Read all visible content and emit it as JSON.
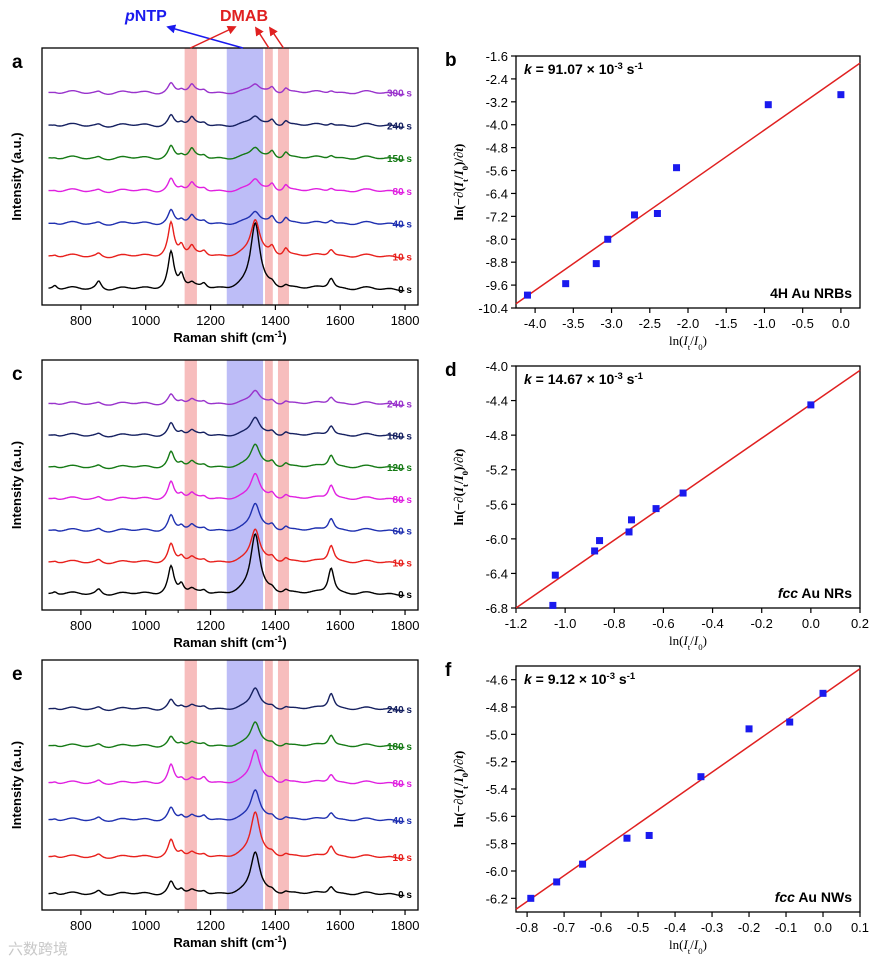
{
  "chart_data": [
    {
      "panel": "a",
      "type": "line",
      "title": "",
      "xlabel": "Raman shift (cm-1)",
      "ylabel": "Intensity (a.u.)",
      "xlim": [
        680,
        1840
      ],
      "xticks": [
        800,
        1000,
        1200,
        1400,
        1600,
        1800
      ],
      "series": [
        {
          "name": "0 s",
          "color": "#000000"
        },
        {
          "name": "10 s",
          "color": "#e8201c"
        },
        {
          "name": "40 s",
          "color": "#1f30b0"
        },
        {
          "name": "80 s",
          "color": "#e020e0"
        },
        {
          "name": "150 s",
          "color": "#157a15"
        },
        {
          "name": "240 s",
          "color": "#152060"
        },
        {
          "name": "300 s",
          "color": "#9933cc"
        }
      ]
    },
    {
      "panel": "b",
      "type": "scatter",
      "title": "",
      "annotation_k": "k = 91.07 × 10-3 s-1",
      "sample": "4H Au NRBs",
      "xlabel": "ln(It/I0)",
      "ylabel": "ln(−∂(It/I0)/∂t)",
      "xlim": [
        -4.25,
        0.25
      ],
      "ylim": [
        -10.4,
        -1.6
      ],
      "xticks": [
        -4.0,
        -3.5,
        -3.0,
        -2.5,
        -2.0,
        -1.5,
        -1.0,
        -0.5,
        0.0
      ],
      "yticks": [
        -10.4,
        -9.6,
        -8.8,
        -8.0,
        -7.2,
        -6.4,
        -5.6,
        -4.8,
        -4.0,
        -3.2,
        -2.4,
        -1.6
      ],
      "points": [
        [
          -4.1,
          -9.95
        ],
        [
          -3.6,
          -9.55
        ],
        [
          -3.2,
          -8.85
        ],
        [
          -3.05,
          -8.0
        ],
        [
          -2.7,
          -7.15
        ],
        [
          -2.4,
          -7.1
        ],
        [
          -2.15,
          -5.5
        ],
        [
          -0.95,
          -3.3
        ],
        [
          0.0,
          -2.95
        ]
      ],
      "fit": [
        [
          -4.25,
          -10.25
        ],
        [
          0.25,
          -1.85
        ]
      ]
    },
    {
      "panel": "c",
      "type": "line",
      "title": "",
      "xlabel": "Raman shift (cm-1)",
      "ylabel": "Intensity (a.u.)",
      "xlim": [
        680,
        1840
      ],
      "xticks": [
        800,
        1000,
        1200,
        1400,
        1600,
        1800
      ],
      "series": [
        {
          "name": "0 s",
          "color": "#000000"
        },
        {
          "name": "10 s",
          "color": "#e8201c"
        },
        {
          "name": "60 s",
          "color": "#1f30b0"
        },
        {
          "name": "80 s",
          "color": "#e020e0"
        },
        {
          "name": "120 s",
          "color": "#157a15"
        },
        {
          "name": "180 s",
          "color": "#152060"
        },
        {
          "name": "240 s",
          "color": "#9933cc"
        }
      ]
    },
    {
      "panel": "d",
      "type": "scatter",
      "title": "",
      "annotation_k": "k = 14.67 × 10-3 s-1",
      "sample": "fcc Au NRs",
      "xlabel": "ln(It/I0)",
      "ylabel": "ln(−∂(It/I0)/∂t)",
      "xlim": [
        -1.2,
        0.2
      ],
      "ylim": [
        -6.8,
        -4.0
      ],
      "xticks": [
        -1.2,
        -1.0,
        -0.8,
        -0.6,
        -0.4,
        -0.2,
        0.0,
        0.2
      ],
      "yticks": [
        -6.8,
        -6.4,
        -6.0,
        -5.6,
        -5.2,
        -4.8,
        -4.4,
        -4.0
      ],
      "points": [
        [
          -1.05,
          -6.77
        ],
        [
          -1.04,
          -6.42
        ],
        [
          -0.88,
          -6.14
        ],
        [
          -0.86,
          -6.02
        ],
        [
          -0.74,
          -5.92
        ],
        [
          -0.73,
          -5.78
        ],
        [
          -0.63,
          -5.65
        ],
        [
          -0.52,
          -5.47
        ],
        [
          0.0,
          -4.45
        ]
      ],
      "fit": [
        [
          -1.2,
          -6.8
        ],
        [
          0.2,
          -4.05
        ]
      ]
    },
    {
      "panel": "e",
      "type": "line",
      "title": "",
      "xlabel": "Raman shift (cm-1)",
      "ylabel": "Intensity (a.u.)",
      "xlim": [
        680,
        1840
      ],
      "xticks": [
        800,
        1000,
        1200,
        1400,
        1600,
        1800
      ],
      "series": [
        {
          "name": "0 s",
          "color": "#000000"
        },
        {
          "name": "10 s",
          "color": "#e8201c"
        },
        {
          "name": "40 s",
          "color": "#1f30b0"
        },
        {
          "name": "80 s",
          "color": "#e020e0"
        },
        {
          "name": "180 s",
          "color": "#157a15"
        },
        {
          "name": "240 s",
          "color": "#152060"
        }
      ]
    },
    {
      "panel": "f",
      "type": "scatter",
      "title": "",
      "annotation_k": "k = 9.12 × 10-3 s-1",
      "sample": "fcc Au NWs",
      "xlabel": "ln(It/I0)",
      "ylabel": "ln(−∂(It/I0)/∂t)",
      "xlim": [
        -0.83,
        0.1
      ],
      "ylim": [
        -6.3,
        -4.5
      ],
      "xticks": [
        -0.8,
        -0.7,
        -0.6,
        -0.5,
        -0.4,
        -0.3,
        -0.2,
        -0.1,
        0.0,
        0.1
      ],
      "yticks": [
        -6.2,
        -6.0,
        -5.8,
        -5.6,
        -5.4,
        -5.2,
        -5.0,
        -4.8,
        -4.6
      ],
      "points": [
        [
          -0.79,
          -6.2
        ],
        [
          -0.72,
          -6.08
        ],
        [
          -0.65,
          -5.95
        ],
        [
          -0.53,
          -5.76
        ],
        [
          -0.47,
          -5.74
        ],
        [
          -0.33,
          -5.31
        ],
        [
          -0.2,
          -4.96
        ],
        [
          -0.09,
          -4.91
        ],
        [
          0.0,
          -4.7
        ]
      ],
      "fit": [
        [
          -0.83,
          -6.28
        ],
        [
          0.1,
          -4.52
        ]
      ]
    }
  ],
  "annotations": {
    "pntp": "pNTP",
    "dmab": "DMAB",
    "watermark": "六数跨境"
  },
  "colors": {
    "band_red": "#f4a7a7",
    "band_blue": "#a7a7f4",
    "fit_line": "#e02020",
    "marker": "#1a1aee",
    "pntp_text": "#1a1aee",
    "dmab_text": "#e02020"
  }
}
